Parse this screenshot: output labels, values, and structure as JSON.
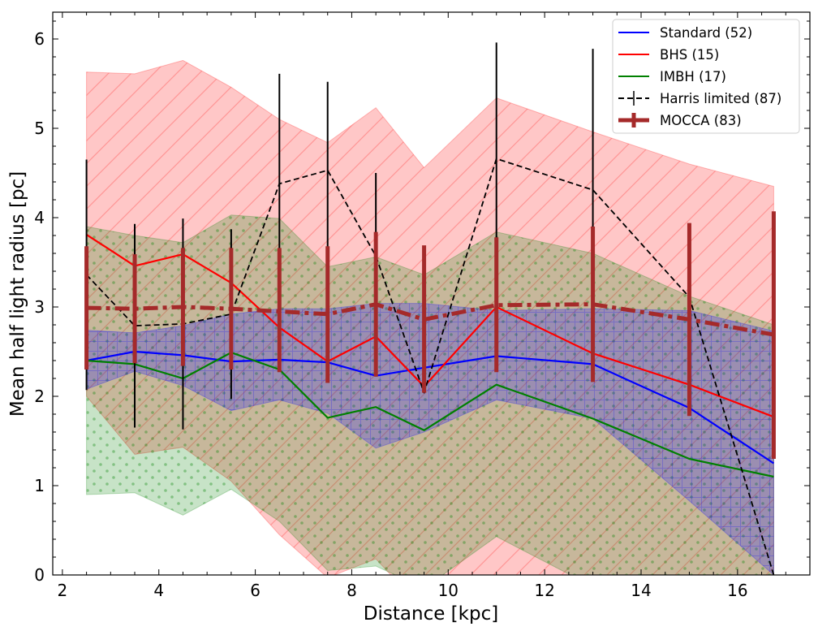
{
  "chart_data": {
    "type": "line",
    "title": "",
    "xlabel": "Distance [kpc]",
    "ylabel": "Mean half light radius [pc]",
    "xlim": [
      1.8,
      17.5
    ],
    "ylim": [
      0,
      6.3
    ],
    "xticks": [
      2,
      4,
      6,
      8,
      10,
      12,
      14,
      16
    ],
    "yticks": [
      0,
      1,
      2,
      3,
      4,
      5,
      6
    ],
    "xtick_labels": [
      "2",
      "4",
      "6",
      "8",
      "10",
      "12",
      "14",
      "16"
    ],
    "ytick_labels": [
      "0",
      "1",
      "2",
      "3",
      "4",
      "5",
      "6"
    ],
    "grid": false,
    "legend_position": "top-right",
    "bands": [
      {
        "name": "BHS spread",
        "color": "#ff0000",
        "hatch": "diagonal",
        "x": [
          2.5,
          3.5,
          4.5,
          5.5,
          6.5,
          7.5,
          8.5,
          9.5,
          11.0,
          13.0,
          15.0,
          16.75
        ],
        "upper": [
          5.63,
          5.61,
          5.76,
          5.46,
          5.1,
          4.84,
          5.23,
          4.56,
          5.34,
          4.96,
          4.6,
          4.35
        ],
        "lower": [
          2.0,
          1.35,
          1.43,
          1.05,
          0.45,
          -0.03,
          0.18,
          -0.4,
          -0.4,
          -0.4,
          -0.4,
          -0.4
        ]
      },
      {
        "name": "IMBH spread",
        "color": "#008000",
        "hatch": "dots",
        "x": [
          2.5,
          3.5,
          4.5,
          5.5,
          6.5,
          7.5,
          8.5,
          9.5,
          11.0,
          13.0,
          15.0,
          16.75
        ],
        "upper": [
          3.9,
          3.8,
          3.72,
          4.03,
          3.99,
          3.45,
          3.56,
          3.36,
          3.84,
          3.6,
          3.12,
          2.8
        ],
        "lower": [
          0.9,
          0.92,
          0.67,
          0.96,
          0.6,
          0.05,
          0.1,
          -0.15,
          0.43,
          -0.13,
          -0.4,
          -0.4
        ]
      },
      {
        "name": "Standard spread",
        "color": "#0000ff",
        "hatch": "grid",
        "x": [
          2.5,
          3.5,
          4.5,
          5.5,
          6.5,
          7.5,
          8.5,
          9.5,
          11.0,
          13.0,
          15.0,
          16.75
        ],
        "upper": [
          2.74,
          2.71,
          2.79,
          2.92,
          2.98,
          2.98,
          3.04,
          3.04,
          2.96,
          2.98,
          2.96,
          2.73
        ],
        "lower": [
          2.08,
          2.28,
          2.12,
          1.84,
          1.96,
          1.81,
          1.42,
          1.6,
          1.96,
          1.75,
          0.83,
          0.0
        ]
      }
    ],
    "series": [
      {
        "name": "Standard (52)",
        "color": "#0000ff",
        "style": "solid",
        "x": [
          2.5,
          3.5,
          4.5,
          5.5,
          6.5,
          7.5,
          8.5,
          9.5,
          11.0,
          13.0,
          15.0,
          16.75
        ],
        "y": [
          2.4,
          2.5,
          2.46,
          2.39,
          2.41,
          2.38,
          2.23,
          2.32,
          2.45,
          2.36,
          1.87,
          1.25
        ]
      },
      {
        "name": "BHS (15)",
        "color": "#ff0000",
        "style": "solid",
        "x": [
          2.5,
          3.5,
          4.5,
          5.5,
          6.5,
          7.5,
          8.5,
          9.5,
          11.0,
          13.0,
          15.0,
          16.75
        ],
        "y": [
          3.81,
          3.46,
          3.59,
          3.27,
          2.77,
          2.39,
          2.67,
          2.11,
          3.0,
          2.48,
          2.13,
          1.77
        ]
      },
      {
        "name": "IMBH (17)",
        "color": "#008000",
        "style": "solid",
        "x": [
          2.5,
          3.5,
          4.5,
          5.5,
          6.5,
          7.5,
          8.5,
          9.5,
          11.0,
          13.0,
          15.0,
          16.75
        ],
        "y": [
          2.4,
          2.36,
          2.2,
          2.49,
          2.3,
          1.76,
          1.88,
          1.62,
          2.13,
          1.75,
          1.3,
          1.1
        ]
      },
      {
        "name": "Harris limited (87)",
        "color": "#000000",
        "style": "dashed",
        "x": [
          2.5,
          3.5,
          4.5,
          5.5,
          6.5,
          7.5,
          8.5,
          9.5,
          11.0,
          13.0,
          15.0,
          16.75
        ],
        "y": [
          3.36,
          2.79,
          2.81,
          2.92,
          4.38,
          4.53,
          3.57,
          2.04,
          4.66,
          4.31,
          3.11,
          0.0
        ],
        "yerr_low": [
          1.29,
          1.14,
          1.18,
          0.95,
          1.25,
          1.07,
          1.17,
          0.0,
          1.29,
          1.05,
          0.0,
          0.0
        ],
        "yerr_high": [
          1.29,
          1.14,
          1.18,
          0.95,
          1.23,
          0.99,
          0.93,
          0.0,
          1.3,
          1.58,
          0.0,
          0.0
        ]
      },
      {
        "name": "MOCCA (83)",
        "color": "#a52a2a",
        "style": "dashdot",
        "x": [
          2.5,
          3.5,
          4.5,
          5.5,
          6.5,
          7.5,
          8.5,
          9.5,
          11.0,
          13.0,
          15.0,
          16.75
        ],
        "y": [
          2.99,
          2.98,
          3.0,
          2.98,
          2.95,
          2.92,
          3.03,
          2.86,
          3.02,
          3.03,
          2.86,
          2.69
        ],
        "yerr_low": [
          0.69,
          0.61,
          0.66,
          0.68,
          0.68,
          0.77,
          0.81,
          0.82,
          0.75,
          0.87,
          1.08,
          1.39
        ],
        "yerr_high": [
          0.69,
          0.61,
          0.66,
          0.68,
          0.71,
          0.76,
          0.81,
          0.83,
          0.76,
          0.87,
          1.08,
          1.38
        ]
      }
    ]
  }
}
